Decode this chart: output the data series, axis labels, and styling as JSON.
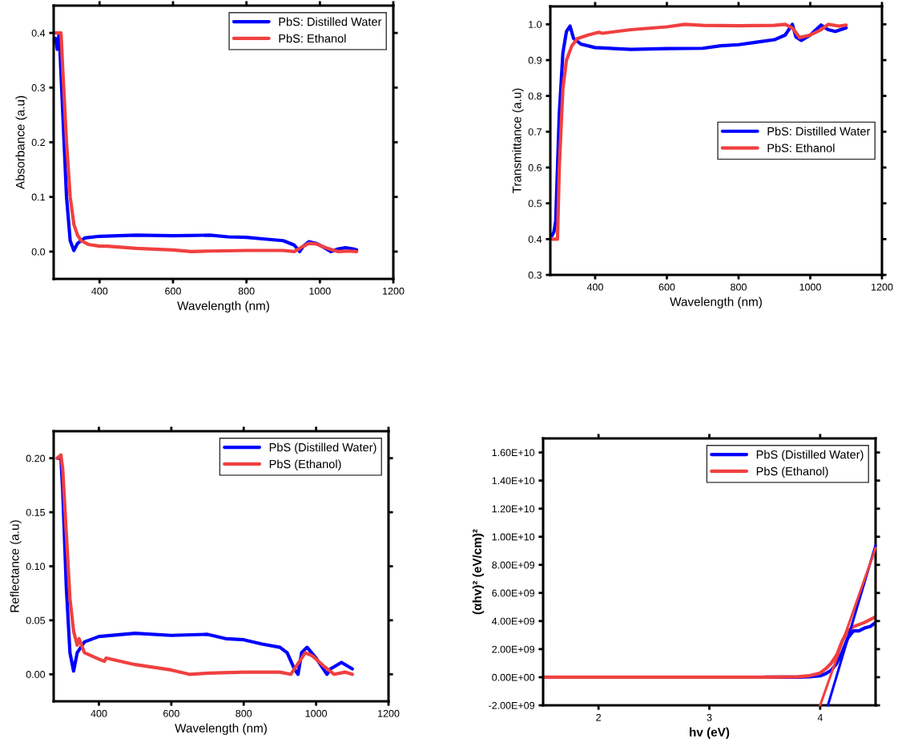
{
  "chart_data": [
    {
      "type": "line",
      "xlabel": "Wavelength (nm)",
      "ylabel": "Absorbance (a.u)",
      "xlim": [
        275,
        1200
      ],
      "xticks": [
        400,
        600,
        800,
        1000,
        1200
      ],
      "ylim": [
        -0.05,
        0.45
      ],
      "yticks": [
        {
          "value": 0,
          "label": "0.0"
        },
        0.1,
        0.2,
        0.3,
        0.4
      ],
      "legend": "top right",
      "grid": false,
      "series": [
        {
          "name": "PbS: Distilled Water",
          "color": "#0000ff",
          "x": [
            280,
            285,
            290,
            300,
            310,
            320,
            330,
            340,
            360,
            400,
            500,
            600,
            700,
            750,
            800,
            850,
            900,
            930,
            945,
            955,
            970,
            990,
            1010,
            1030,
            1050,
            1070,
            1090,
            1100
          ],
          "values": [
            0.39,
            0.37,
            0.4,
            0.25,
            0.1,
            0.02,
            0.002,
            0.015,
            0.025,
            0.028,
            0.03,
            0.029,
            0.03,
            0.027,
            0.026,
            0.023,
            0.02,
            0.012,
            0.0,
            0.01,
            0.018,
            0.015,
            0.008,
            0.0,
            0.005,
            0.007,
            0.005,
            0.003
          ]
        },
        {
          "name": "PbS: Ethanol",
          "color": "#f04040",
          "x": [
            280,
            295,
            300,
            310,
            320,
            330,
            340,
            350,
            370,
            400,
            420,
            500,
            600,
            650,
            700,
            800,
            900,
            930,
            950,
            970,
            990,
            1020,
            1050,
            1080,
            1100
          ],
          "values": [
            0.4,
            0.4,
            0.33,
            0.2,
            0.1,
            0.05,
            0.03,
            0.02,
            0.013,
            0.01,
            0.01,
            0.006,
            0.003,
            0.0,
            0.001,
            0.002,
            0.002,
            0.0,
            0.008,
            0.015,
            0.014,
            0.006,
            0.0,
            0.001,
            0.0
          ]
        }
      ]
    },
    {
      "type": "line",
      "xlabel": "Wavelength (nm)",
      "ylabel": "Transmittance (a.u)",
      "xlim": [
        275,
        1200
      ],
      "xticks": [
        400,
        600,
        800,
        1000,
        1200
      ],
      "ylim": [
        0.3,
        1.05
      ],
      "yticks": [
        0.3,
        0.4,
        0.5,
        0.6,
        0.7,
        0.8,
        0.9,
        {
          "value": 1.0,
          "label": "1.0"
        }
      ],
      "legend": "right",
      "grid": false,
      "series": [
        {
          "name": "PbS: Distilled Water",
          "color": "#0000ff",
          "x": [
            280,
            285,
            290,
            300,
            310,
            320,
            330,
            340,
            360,
            400,
            500,
            600,
            700,
            750,
            800,
            850,
            900,
            930,
            950,
            960,
            975,
            1000,
            1030,
            1050,
            1070,
            1100
          ],
          "values": [
            0.41,
            0.42,
            0.45,
            0.75,
            0.92,
            0.98,
            0.995,
            0.96,
            0.945,
            0.935,
            0.93,
            0.932,
            0.933,
            0.94,
            0.943,
            0.95,
            0.957,
            0.97,
            1.0,
            0.965,
            0.955,
            0.97,
            0.998,
            0.985,
            0.98,
            0.99
          ]
        },
        {
          "name": "PbS: Ethanol",
          "color": "#f04040",
          "x": [
            280,
            295,
            300,
            310,
            320,
            335,
            350,
            380,
            410,
            420,
            500,
            600,
            650,
            700,
            800,
            900,
            930,
            950,
            970,
            1000,
            1030,
            1050,
            1080,
            1100
          ],
          "values": [
            0.4,
            0.4,
            0.6,
            0.82,
            0.9,
            0.94,
            0.96,
            0.97,
            0.978,
            0.975,
            0.985,
            0.993,
            1.0,
            0.997,
            0.996,
            0.997,
            1.0,
            0.99,
            0.963,
            0.97,
            0.985,
            1.0,
            0.995,
            0.998
          ]
        }
      ]
    },
    {
      "type": "line",
      "xlabel": "Wavelength (nm)",
      "ylabel": "Reflectance (a.u)",
      "xlim": [
        275,
        1200
      ],
      "xticks": [
        400,
        600,
        800,
        1000,
        1200
      ],
      "ylim": [
        -0.025,
        0.225
      ],
      "yticks": [
        {
          "value": 0,
          "label": "0.00"
        },
        0.05,
        {
          "value": 0.1,
          "label": "0.10"
        },
        0.15,
        {
          "value": 0.2,
          "label": "0.20"
        }
      ],
      "legend": "top right",
      "grid": false,
      "series": [
        {
          "name": "PbS (Distilled Water)",
          "color": "#0000ff",
          "x": [
            285,
            295,
            300,
            310,
            320,
            330,
            340,
            360,
            400,
            500,
            600,
            700,
            750,
            800,
            850,
            900,
            920,
            940,
            950,
            960,
            975,
            1000,
            1020,
            1030,
            1040,
            1070,
            1100
          ],
          "values": [
            0.2,
            0.2,
            0.17,
            0.08,
            0.02,
            0.003,
            0.02,
            0.03,
            0.035,
            0.038,
            0.036,
            0.037,
            0.033,
            0.032,
            0.028,
            0.025,
            0.02,
            0.005,
            0.0,
            0.02,
            0.025,
            0.015,
            0.005,
            0.0,
            0.005,
            0.011,
            0.005
          ]
        },
        {
          "name": "PbS (Ethanol)",
          "color": "#f04040",
          "x": [
            285,
            295,
            300,
            310,
            320,
            330,
            340,
            345,
            360,
            400,
            415,
            420,
            500,
            600,
            650,
            700,
            800,
            900,
            930,
            950,
            970,
            990,
            1020,
            1050,
            1080,
            1100
          ],
          "values": [
            0.2,
            0.203,
            0.19,
            0.13,
            0.07,
            0.04,
            0.027,
            0.033,
            0.02,
            0.014,
            0.012,
            0.015,
            0.009,
            0.004,
            0.0,
            0.001,
            0.002,
            0.002,
            0.0,
            0.01,
            0.02,
            0.017,
            0.008,
            0.0,
            0.002,
            0.0
          ]
        }
      ]
    },
    {
      "type": "line",
      "xlabel": "hv (eV)",
      "ylabel": "(αhv)² (eV/cm)²",
      "xlim": [
        1.5,
        4.5
      ],
      "xticks": [
        2,
        3,
        4
      ],
      "ylim": [
        -2000000000,
        17000000000
      ],
      "yticks": [
        {
          "value": -2000000000,
          "label": "-2.00E+09"
        },
        {
          "value": 0,
          "label": "0.00E+00"
        },
        {
          "value": 2000000000,
          "label": "2.00E+09"
        },
        {
          "value": 4000000000,
          "label": "4.00E+09"
        },
        {
          "value": 6000000000,
          "label": "6.00E+09"
        },
        {
          "value": 8000000000,
          "label": "8.00E+09"
        },
        {
          "value": 10000000000,
          "label": "1.00E+10"
        },
        {
          "value": 12000000000,
          "label": "1.20E+10"
        },
        {
          "value": 14000000000,
          "label": "1.40E+10"
        },
        {
          "value": 16000000000,
          "label": "1.60E+10"
        }
      ],
      "legend": "top right",
      "grid": false,
      "series": [
        {
          "name": "PbS (Distilled Water)",
          "color": "#0000ff",
          "x": [
            3.5,
            3.8,
            3.9,
            4.0,
            4.05,
            4.1,
            4.15,
            4.2,
            4.25,
            4.3,
            4.35,
            4.4,
            4.45,
            4.5
          ],
          "values": [
            0,
            0,
            30000000,
            100000000,
            250000000,
            500000000,
            1000000000,
            1800000000,
            2800000000,
            3300000000,
            3300000000,
            3500000000,
            3600000000,
            3900000000
          ]
        },
        {
          "name": "PbS (Ethanol)",
          "color": "#f04040",
          "x": [
            1.5,
            2.5,
            3.5,
            3.8,
            3.9,
            4.0,
            4.05,
            4.1,
            4.15,
            4.2,
            4.25,
            4.3,
            4.4,
            4.5
          ],
          "values": [
            0,
            0,
            0,
            30000000,
            100000000,
            300000000,
            600000000,
            1000000000,
            1600000000,
            2600000000,
            3300000000,
            3600000000,
            3900000000,
            4300000000
          ]
        },
        {
          "color": "#0000ff",
          "x": [
            4.5,
            4.07
          ],
          "values": [
            9400000000,
            -2000000000
          ]
        },
        {
          "color": "#f04040",
          "x": [
            4.5,
            4.0
          ],
          "values": [
            9200000000,
            -2000000000
          ]
        }
      ]
    }
  ]
}
